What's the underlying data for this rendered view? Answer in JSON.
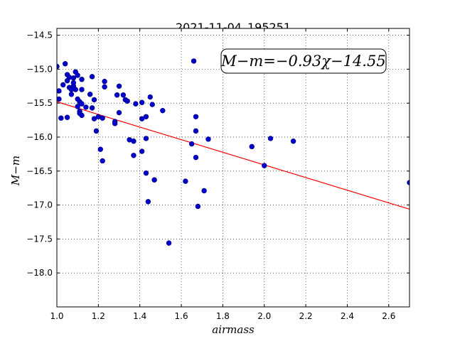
{
  "chart_data": {
    "type": "scatter",
    "title": "2021-11-04_195251",
    "xlabel": "airmass",
    "ylabel": "M−m",
    "annotation": "M−m=−0.93χ−14.55",
    "xlim": [
      1.0,
      2.7
    ],
    "ylim": [
      -18.5,
      -14.4
    ],
    "y_inverted": true,
    "xticks": [
      1.0,
      1.2,
      1.4,
      1.6,
      1.8,
      2.0,
      2.2,
      2.4,
      2.6
    ],
    "xtick_labels": [
      "1.0",
      "1.2",
      "1.4",
      "1.6",
      "1.8",
      "2.0",
      "2.2",
      "2.4",
      "2.6"
    ],
    "yticks": [
      -14.5,
      -15.0,
      -15.5,
      -16.0,
      -16.5,
      -17.0,
      -17.5,
      -18.0
    ],
    "ytick_labels": [
      "−14.5",
      "−15.0",
      "−15.5",
      "−16.0",
      "−16.5",
      "−17.0",
      "−17.5",
      "−18.0"
    ],
    "grid": true,
    "series": [
      {
        "marker_color": "#0000cc",
        "points": [
          [
            1.0,
            -14.96
          ],
          [
            1.01,
            -15.32
          ],
          [
            1.01,
            -15.44
          ],
          [
            1.02,
            -15.72
          ],
          [
            1.03,
            -15.23
          ],
          [
            1.04,
            -14.92
          ],
          [
            1.05,
            -15.17
          ],
          [
            1.05,
            -15.08
          ],
          [
            1.05,
            -15.71
          ],
          [
            1.06,
            -15.27
          ],
          [
            1.06,
            -15.12
          ],
          [
            1.07,
            -15.37
          ],
          [
            1.07,
            -15.3
          ],
          [
            1.08,
            -15.25
          ],
          [
            1.08,
            -15.13
          ],
          [
            1.08,
            -15.2
          ],
          [
            1.09,
            -15.04
          ],
          [
            1.09,
            -15.3
          ],
          [
            1.1,
            -15.09
          ],
          [
            1.1,
            -15.44
          ],
          [
            1.1,
            -15.55
          ],
          [
            1.11,
            -15.62
          ],
          [
            1.11,
            -15.48
          ],
          [
            1.11,
            -15.65
          ],
          [
            1.12,
            -15.15
          ],
          [
            1.12,
            -15.3
          ],
          [
            1.12,
            -15.51
          ],
          [
            1.12,
            -15.68
          ],
          [
            1.14,
            -15.56
          ],
          [
            1.16,
            -15.37
          ],
          [
            1.17,
            -15.11
          ],
          [
            1.17,
            -15.57
          ],
          [
            1.18,
            -15.73
          ],
          [
            1.18,
            -15.45
          ],
          [
            1.19,
            -15.91
          ],
          [
            1.2,
            -15.7
          ],
          [
            1.21,
            -16.18
          ],
          [
            1.22,
            -16.35
          ],
          [
            1.22,
            -15.72
          ],
          [
            1.23,
            -15.18
          ],
          [
            1.23,
            -15.26
          ],
          [
            1.28,
            -15.77
          ],
          [
            1.28,
            -15.8
          ],
          [
            1.29,
            -15.38
          ],
          [
            1.3,
            -15.64
          ],
          [
            1.3,
            -15.25
          ],
          [
            1.32,
            -15.38
          ],
          [
            1.33,
            -15.45
          ],
          [
            1.34,
            -15.47
          ],
          [
            1.35,
            -16.04
          ],
          [
            1.37,
            -16.27
          ],
          [
            1.37,
            -16.06
          ],
          [
            1.38,
            -15.51
          ],
          [
            1.41,
            -15.49
          ],
          [
            1.41,
            -15.73
          ],
          [
            1.41,
            -16.21
          ],
          [
            1.43,
            -16.53
          ],
          [
            1.43,
            -16.02
          ],
          [
            1.43,
            -15.7
          ],
          [
            1.44,
            -16.95
          ],
          [
            1.45,
            -15.41
          ],
          [
            1.46,
            -15.52
          ],
          [
            1.47,
            -16.63
          ],
          [
            1.51,
            -15.61
          ],
          [
            1.54,
            -17.56
          ],
          [
            1.62,
            -16.65
          ],
          [
            1.65,
            -16.1
          ],
          [
            1.66,
            -14.88
          ],
          [
            1.67,
            -15.91
          ],
          [
            1.67,
            -15.7
          ],
          [
            1.67,
            -16.3
          ],
          [
            1.68,
            -17.02
          ],
          [
            1.71,
            -16.79
          ],
          [
            1.73,
            -16.03
          ],
          [
            1.94,
            -16.14
          ],
          [
            2.0,
            -16.42
          ],
          [
            2.03,
            -16.02
          ],
          [
            2.14,
            -16.06
          ],
          [
            2.7,
            -16.67
          ]
        ]
      }
    ],
    "fit_line": {
      "slope": -0.93,
      "intercept": -14.55,
      "x_range": [
        1.0,
        2.7
      ],
      "color": "#ff0000"
    }
  }
}
